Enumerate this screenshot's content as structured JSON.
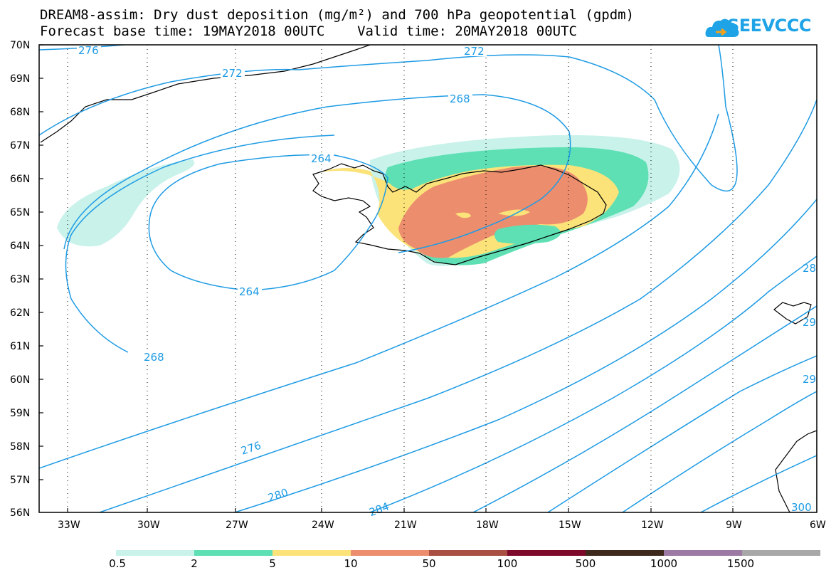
{
  "title_line1": "DREAM8-assim: Dry dust deposition (mg/m²) and 700 hPa geopotential (gpdm)",
  "title_line2": "Forecast base time: 19MAY2018 00UTC    Valid time: 20MAY2018 00UTC",
  "logo_text": "SEEVCCC",
  "lat_labels": [
    "70N",
    "69N",
    "68N",
    "67N",
    "66N",
    "65N",
    "64N",
    "63N",
    "62N",
    "61N",
    "60N",
    "59N",
    "58N",
    "57N",
    "56N"
  ],
  "lon_labels": [
    "33W",
    "30W",
    "27W",
    "24W",
    "21W",
    "18W",
    "15W",
    "12W",
    "9W",
    "6W"
  ],
  "contour_labels": [
    "276",
    "272",
    "272",
    "268",
    "264",
    "264",
    "268",
    "276",
    "280",
    "284",
    "28",
    "29",
    "29",
    "300"
  ],
  "legend": {
    "labels": [
      "0.5",
      "2",
      "5",
      "10",
      "50",
      "100",
      "500",
      "1000",
      "1500"
    ],
    "colors": [
      "#c8f2ea",
      "#5ee0b4",
      "#fbe37a",
      "#ec8e6e",
      "#a94f44",
      "#7d0a2a",
      "#3e2a1c",
      "#9c7aa4",
      "#a8a8a8"
    ]
  },
  "colors": {
    "contour": "#1e9be4",
    "coast": "#000000"
  }
}
